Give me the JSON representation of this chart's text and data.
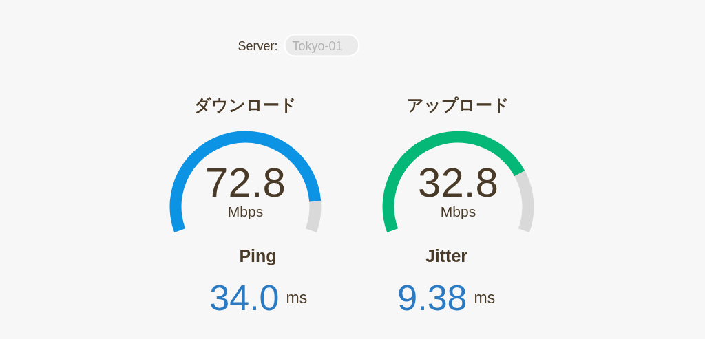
{
  "chart_data": [
    {
      "type": "other",
      "annotations": [
        "Server:",
        "Tokyo-01"
      ]
    },
    {
      "type": "donut",
      "title": "ダウンロード",
      "categories": [
        null,
        null
      ],
      "values": [
        89,
        11
      ],
      "colors": [
        "#0c93e4",
        "#d9d9d9"
      ],
      "annotations": [
        "72.8",
        "Mbps"
      ]
    },
    {
      "type": "donut",
      "title": "アップロード",
      "categories": [
        null,
        null
      ],
      "values": [
        78,
        22
      ],
      "colors": [
        "#06b877",
        "#d9d9d9"
      ],
      "annotations": [
        "32.8",
        "Mbps"
      ]
    },
    {
      "type": "other",
      "title": "Ping",
      "annotations": [
        "34.0",
        "ms"
      ]
    },
    {
      "type": "other",
      "title": "Jitter",
      "annotations": [
        "9.38",
        "ms"
      ]
    }
  ]
}
